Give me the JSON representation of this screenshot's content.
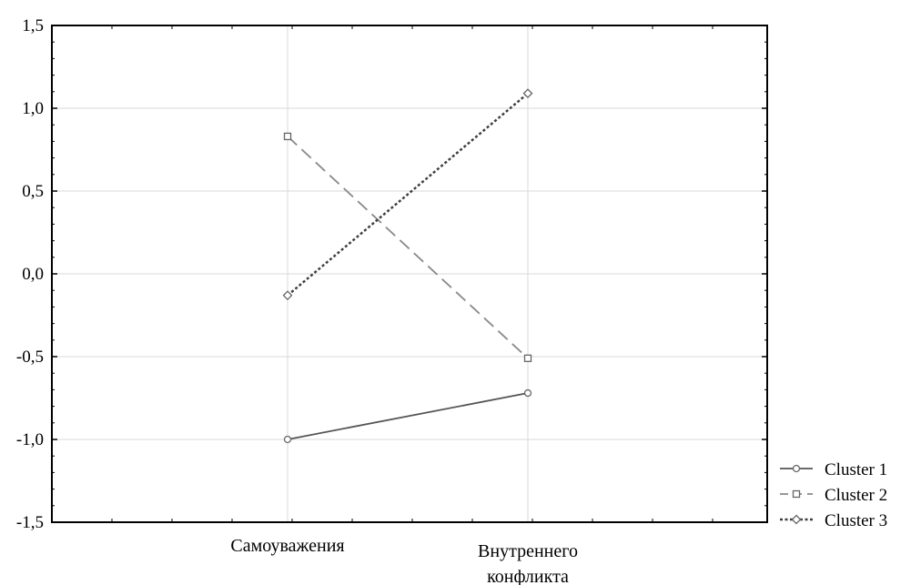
{
  "chart_data": {
    "type": "line",
    "title": "",
    "xlabel": "",
    "ylabel": "",
    "categories": [
      [
        "Самоуважения"
      ],
      [
        "Внутреннего",
        "конфликта"
      ]
    ],
    "ylim": [
      -1.5,
      1.5
    ],
    "yticks": [
      "1,5",
      "1,0",
      "0,5",
      "0,0",
      "-0,5",
      "-1,0",
      "-1,5"
    ],
    "grid": true,
    "legend_position": "bottom-right, outside plot",
    "series": [
      {
        "name": "Cluster 1",
        "values": [
          -1.0,
          -0.72
        ],
        "line_style": "solid",
        "marker": "circle",
        "color": "#555555"
      },
      {
        "name": "Cluster 2",
        "values": [
          0.83,
          -0.51
        ],
        "line_style": "dashed",
        "marker": "square",
        "color": "#8a8a8a"
      },
      {
        "name": "Cluster 3",
        "values": [
          -0.13,
          1.09
        ],
        "line_style": "dotted",
        "marker": "diamond",
        "color": "#404040"
      }
    ]
  }
}
